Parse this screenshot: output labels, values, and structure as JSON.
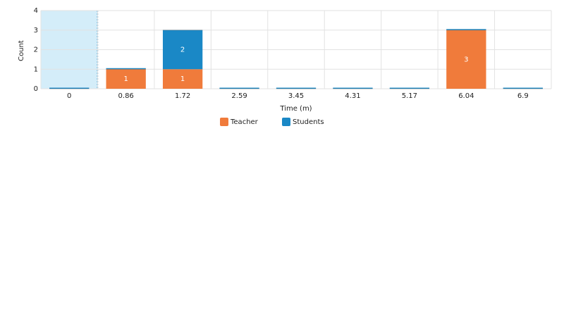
{
  "chart_data": {
    "type": "stacked-bar",
    "x_label": "Time (m)",
    "y_label": "Count",
    "categories": [
      "0",
      "0.86",
      "1.72",
      "2.59",
      "3.45",
      "4.31",
      "5.17",
      "6.04",
      "6.9"
    ],
    "series": [
      {
        "name": "Teacher",
        "color": "#f07b3b",
        "values": [
          0,
          1,
          1,
          0,
          0,
          0,
          0,
          3,
          0
        ]
      },
      {
        "name": "Students",
        "color": "#1a88c6",
        "values": [
          0,
          0,
          2,
          0,
          0,
          0,
          0,
          0,
          0
        ]
      }
    ],
    "ylim": [
      0,
      4
    ],
    "yticks": [
      0,
      1,
      2,
      3,
      4
    ],
    "grid": true
  }
}
